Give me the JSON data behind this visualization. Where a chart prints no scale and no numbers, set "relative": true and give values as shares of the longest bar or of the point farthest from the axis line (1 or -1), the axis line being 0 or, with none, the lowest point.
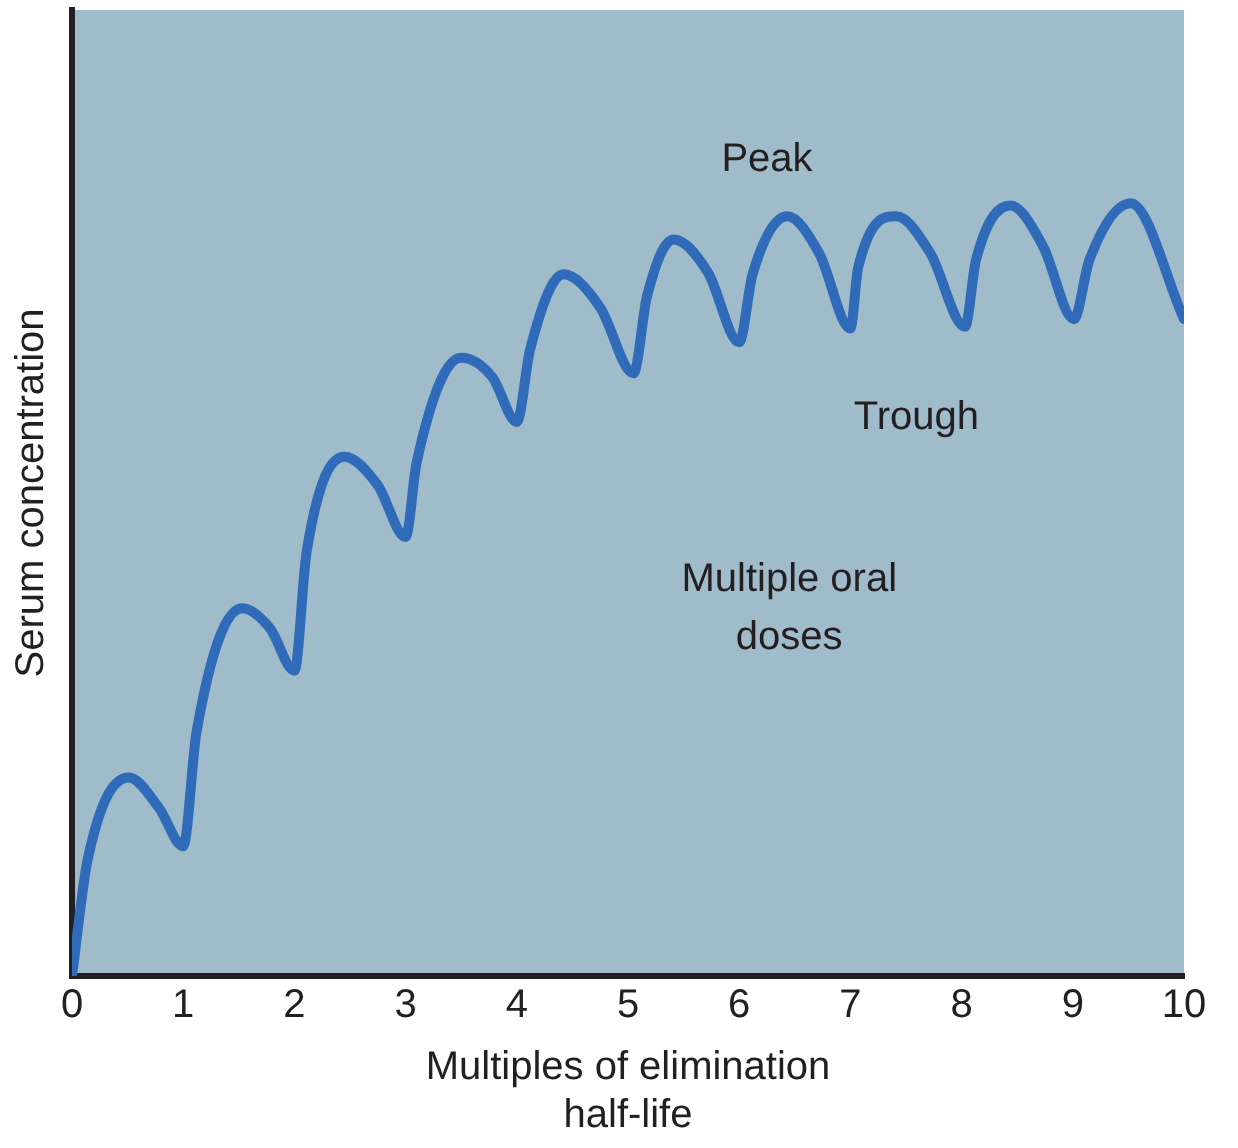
{
  "chart_data": {
    "type": "line",
    "relative": true,
    "xlabel": "Multiples of elimination half-life",
    "ylabel": "Serum concentration",
    "xlim": [
      0,
      10
    ],
    "xticks": [
      0,
      1,
      2,
      3,
      4,
      5,
      6,
      7,
      8,
      9,
      10
    ],
    "grid": false,
    "legend": false,
    "marker": "none",
    "line_style": "solid",
    "series": [
      {
        "color": "#2f6bb8",
        "x": [
          0,
          0.14,
          0.51,
          0.78,
          1.0,
          1.12,
          1.53,
          1.78,
          2.0,
          2.11,
          2.45,
          2.75,
          3.0,
          3.1,
          3.5,
          3.78,
          4.0,
          4.12,
          4.42,
          4.75,
          5.05,
          5.17,
          5.41,
          5.72,
          6.0,
          6.12,
          6.43,
          6.72,
          7.0,
          7.07,
          7.41,
          7.72,
          8.03,
          8.13,
          8.44,
          8.73,
          9.01,
          9.15,
          9.52,
          10
        ],
        "values": [
          0,
          0.15,
          0.257,
          0.218,
          0.168,
          0.316,
          0.476,
          0.45,
          0.395,
          0.549,
          0.672,
          0.635,
          0.568,
          0.665,
          0.8,
          0.775,
          0.717,
          0.811,
          0.908,
          0.865,
          0.78,
          0.879,
          0.953,
          0.91,
          0.82,
          0.908,
          0.983,
          0.935,
          0.838,
          0.917,
          0.983,
          0.935,
          0.84,
          0.927,
          0.997,
          0.945,
          0.85,
          0.927,
          1.0,
          0.85
        ]
      }
    ],
    "annotations": [
      {
        "text": "Peak",
        "x": 6.43,
        "y": 0.983
      },
      {
        "text": "Trough",
        "x": 7.0,
        "y": 0.838
      },
      "Multiple oral doses"
    ]
  }
}
